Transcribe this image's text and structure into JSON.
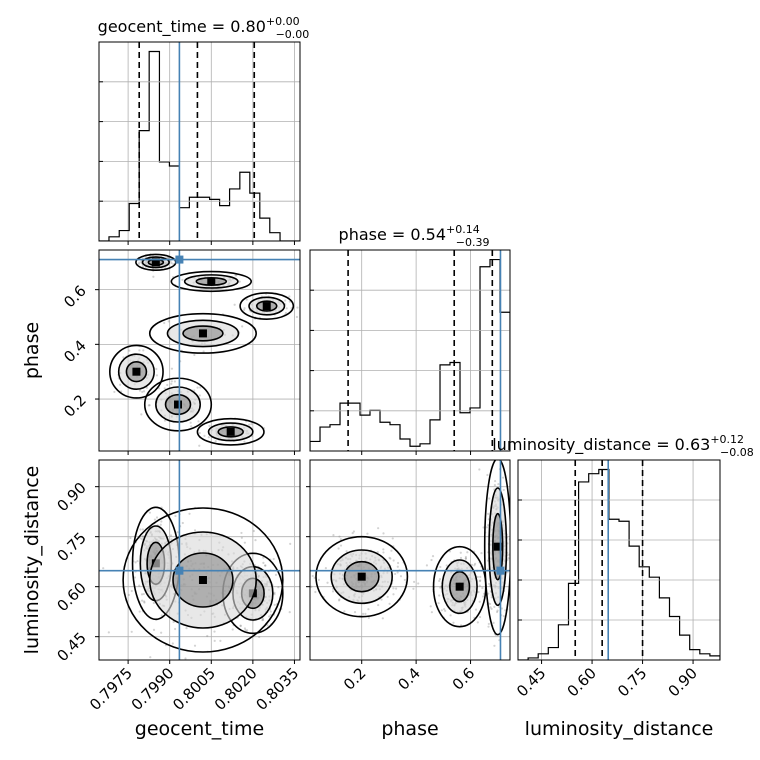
{
  "chart_data": {
    "type": "corner",
    "parameters": [
      "geocent_time",
      "phase",
      "luminosity_distance"
    ],
    "truth": {
      "geocent_time": 0.79935,
      "phase": 0.71,
      "luminosity_distance": 0.648
    },
    "titles": [
      {
        "param": "geocent_time",
        "text": "geocent_time = 0.80",
        "plus": "+0.00",
        "minus": "−0.00"
      },
      {
        "param": "phase",
        "text": "phase = 0.54",
        "plus": "+0.14",
        "minus": "−0.39"
      },
      {
        "param": "luminosity_distance",
        "text": "luminosity_distance = 0.63",
        "plus": "+0.12",
        "minus": "−0.08"
      }
    ],
    "axes": {
      "geocent_time": {
        "range": [
          0.79645,
          0.8037
        ],
        "ticks": [
          0.7975,
          0.799,
          0.8005,
          0.802,
          0.8035
        ],
        "tick_labels": [
          "0.7975",
          "0.7990",
          "0.8005",
          "0.8020",
          "0.8035"
        ]
      },
      "phase": {
        "range": [
          0.01,
          0.745
        ],
        "ticks": [
          0.2,
          0.4,
          0.6
        ],
        "tick_labels": [
          "0.2",
          "0.4",
          "0.6"
        ]
      },
      "luminosity_distance": {
        "range": [
          0.38,
          0.98
        ],
        "ticks": [
          0.45,
          0.6,
          0.75,
          0.9
        ],
        "tick_labels": [
          "0.45",
          "0.60",
          "0.75",
          "0.90"
        ]
      }
    },
    "histograms": [
      {
        "param": "geocent_time",
        "quantiles": [
          0.7979,
          0.8,
          0.80205
        ],
        "bin_edges": [
          0.79645,
          0.79681,
          0.79718,
          0.79754,
          0.7979,
          0.79826,
          0.79863,
          0.79899,
          0.79935,
          0.79971,
          0.80008,
          0.80044,
          0.8008,
          0.80116,
          0.80153,
          0.80189,
          0.80225,
          0.80261,
          0.80298,
          0.80334,
          0.8037
        ],
        "counts": [
          0,
          2,
          5,
          18,
          53,
          91,
          38,
          36,
          16,
          21,
          21,
          20,
          17,
          25,
          33,
          23,
          11,
          4,
          0,
          0
        ]
      },
      {
        "param": "phase",
        "quantiles": [
          0.15,
          0.54,
          0.68
        ],
        "bin_edges": [
          0.01,
          0.0468,
          0.0835,
          0.1203,
          0.157,
          0.1938,
          0.2305,
          0.2673,
          0.304,
          0.3408,
          0.3775,
          0.4143,
          0.451,
          0.4878,
          0.5245,
          0.5613,
          0.598,
          0.6348,
          0.6715,
          0.7083,
          0.745
        ],
        "counts": [
          4,
          10,
          11,
          20,
          20,
          15,
          17,
          12,
          11,
          5,
          2,
          3,
          13,
          36,
          37,
          16,
          18,
          77,
          80,
          58
        ]
      },
      {
        "param": "luminosity_distance",
        "quantiles": [
          0.55,
          0.63,
          0.75
        ],
        "bin_edges": [
          0.38,
          0.41,
          0.44,
          0.47,
          0.5,
          0.53,
          0.56,
          0.59,
          0.62,
          0.65,
          0.68,
          0.71,
          0.74,
          0.77,
          0.8,
          0.83,
          0.86,
          0.89,
          0.92,
          0.95,
          0.98
        ],
        "counts": [
          0,
          1,
          3,
          6,
          17,
          37,
          86,
          90,
          92,
          68,
          67,
          55,
          45,
          40,
          30,
          21,
          12,
          5,
          3,
          2
        ]
      }
    ],
    "joint_panels": [
      {
        "x": "geocent_time",
        "y": "phase"
      },
      {
        "x": "geocent_time",
        "y": "luminosity_distance"
      },
      {
        "x": "phase",
        "y": "luminosity_distance"
      }
    ],
    "truth_color": "#4682b4",
    "line_color": "#000000",
    "grid": true
  }
}
